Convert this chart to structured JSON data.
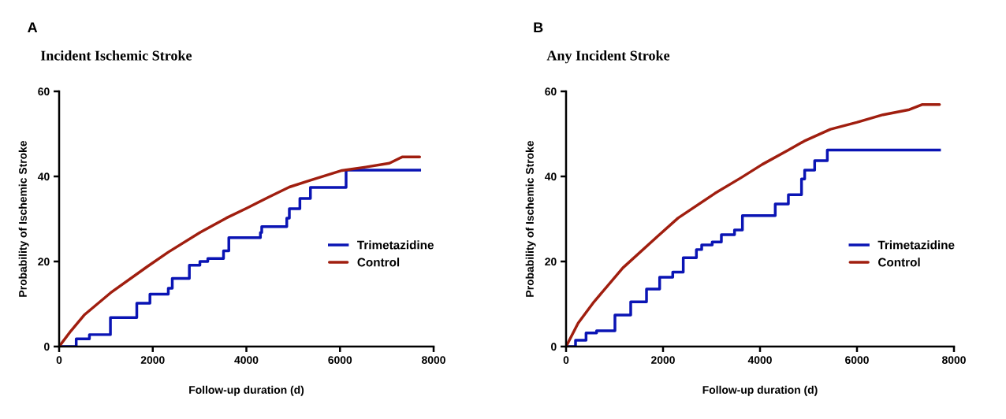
{
  "chart_data": [
    {
      "type": "line",
      "title": "Incident Ischemic Stroke",
      "annotations": [
        "A"
      ],
      "xlabel": "Follow-up duration (d)",
      "ylabel": "Probability of Ischemic Stroke",
      "xlim": [
        0,
        8000
      ],
      "xticks": [
        0,
        2000,
        4000,
        6000,
        8000
      ],
      "ylim": [
        0,
        60
      ],
      "yticks": [
        0,
        20,
        40,
        60
      ],
      "grid": false,
      "legend": "right",
      "series": [
        {
          "name": "Trimetazidine",
          "color": "#0a14b4",
          "type": "step",
          "x": [
            0,
            365,
            647,
            1096,
            1659,
            1940,
            2332,
            2417,
            2782,
            3007,
            3176,
            3512,
            3625,
            4300,
            4328,
            4863,
            4918,
            5143,
            5368,
            6130,
            7702
          ],
          "values": [
            0,
            1.8,
            2.8,
            6.8,
            10.2,
            12.3,
            13.7,
            16.0,
            19.1,
            20.0,
            20.7,
            22.5,
            25.6,
            26.8,
            28.2,
            30.2,
            32.4,
            34.8,
            37.4,
            41.5,
            41.5
          ]
        },
        {
          "name": "Control",
          "color": "#a01e0f",
          "x": [
            0,
            253,
            534,
            1096,
            1883,
            2332,
            3007,
            3569,
            4019,
            4469,
            4918,
            5368,
            6043,
            6549,
            7055,
            7336,
            7702
          ],
          "values": [
            0,
            3.7,
            7.4,
            12.6,
            18.8,
            22.2,
            26.8,
            30.2,
            32.6,
            35.1,
            37.5,
            39.1,
            41.4,
            42.2,
            43.1,
            44.6,
            44.6
          ]
        }
      ]
    },
    {
      "type": "line",
      "title": "Any Incident Stroke",
      "annotations": [
        "B"
      ],
      "xlabel": "Follow-up duration (d)",
      "ylabel": "Probability of Ischemic Stroke",
      "xlim": [
        0,
        8000
      ],
      "xticks": [
        0,
        2000,
        4000,
        6000,
        8000
      ],
      "ylim": [
        0,
        60
      ],
      "yticks": [
        0,
        20,
        40,
        60
      ],
      "grid": false,
      "legend": "right",
      "series": [
        {
          "name": "Trimetazidine",
          "color": "#0a14b4",
          "type": "step",
          "x": [
            0,
            195,
            412,
            629,
            1008,
            1333,
            1659,
            1930,
            2200,
            2417,
            2688,
            2797,
            3014,
            3203,
            3474,
            3637,
            4314,
            4585,
            4856,
            4921,
            5127,
            5388,
            7702
          ],
          "values": [
            0,
            1.5,
            3.2,
            3.7,
            7.4,
            10.5,
            13.5,
            16.3,
            17.5,
            20.9,
            22.8,
            23.9,
            24.6,
            26.3,
            27.4,
            30.8,
            33.5,
            35.7,
            39.4,
            41.5,
            43.7,
            46.2,
            46.2
          ]
        },
        {
          "name": "Control",
          "color": "#a01e0f",
          "x": [
            0,
            249,
            575,
            1171,
            1875,
            2309,
            3068,
            3610,
            4043,
            4585,
            4911,
            5453,
            5995,
            6537,
            7079,
            7350,
            7702
          ],
          "values": [
            0,
            5.5,
            10.5,
            18.5,
            25.8,
            30.2,
            36.0,
            39.7,
            42.8,
            46.2,
            48.3,
            51.1,
            52.7,
            54.5,
            55.7,
            56.9,
            56.9
          ]
        }
      ]
    }
  ]
}
